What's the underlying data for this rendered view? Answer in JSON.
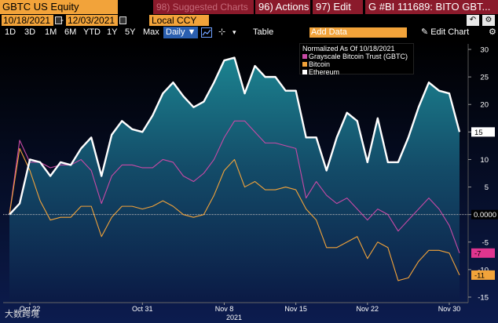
{
  "toolbar": {
    "ticker": "GBTC US Equity",
    "suggested": "98) Suggested Charts",
    "actions": "96) Actions",
    "edit": "97) Edit",
    "chart_title": "G #BI 111689: BITO GBT..."
  },
  "dates": {
    "start": "10/18/2021",
    "end": "12/03/2021",
    "currency": "Local CCY"
  },
  "periods": [
    "1D",
    "3D",
    "1M",
    "6M",
    "YTD",
    "1Y",
    "5Y",
    "Max"
  ],
  "frequency": "Daily ▼",
  "table_label": "Table",
  "add_data_placeholder": "Add Data",
  "edit_chart_label": "Edit Chart",
  "legend": {
    "title": "Normalized As Of 10/18/2021",
    "items": [
      {
        "label": "Grayscale Bitcoin Trust (GBTC)",
        "color": "#c94aa6"
      },
      {
        "label": "Bitcoin",
        "color": "#f2a33a"
      },
      {
        "label": "Ethereum",
        "color": "#ffffff"
      }
    ]
  },
  "watermark": "大数跨境",
  "chart_data": {
    "type": "line",
    "x_ticks": [
      "Oct 22",
      "Oct 31",
      "Nov 8",
      "Nov 15",
      "Nov 22",
      "Nov 30"
    ],
    "x_sublabel": "2021",
    "y_ticks": [
      30,
      25,
      20,
      15,
      10,
      5,
      0,
      -5,
      -10,
      -15
    ],
    "ylim": [
      -16,
      31
    ],
    "last_value_labels": [
      {
        "value": "15",
        "series": "Ethereum",
        "color": "#ffffff"
      },
      {
        "value": "0.0000",
        "series": "baseline",
        "color": "#ffffff"
      },
      {
        "value": "-7",
        "series": "Grayscale Bitcoin Trust (GBTC)",
        "color": "#e0358f"
      },
      {
        "value": "-11",
        "series": "Bitcoin",
        "color": "#f2a33a"
      }
    ],
    "series": [
      {
        "name": "Ethereum",
        "color": "#ffffff",
        "values": [
          0,
          2,
          10,
          9.5,
          7,
          9.5,
          9,
          12,
          14,
          7,
          14.5,
          17,
          15.5,
          15,
          18,
          22,
          24,
          21.5,
          19.5,
          20.5,
          24,
          28,
          28.5,
          22,
          27,
          25,
          25,
          22.5,
          22.5,
          14,
          14,
          8,
          14,
          18.5,
          17,
          9.5,
          17.5,
          9.5,
          9.5,
          14,
          19.5,
          24,
          22.5,
          22,
          15
        ]
      },
      {
        "name": "Grayscale Bitcoin Trust (GBTC)",
        "color": "#c94aa6",
        "values": [
          0,
          13.5,
          9.5,
          9.5,
          8.5,
          9,
          9,
          10,
          8,
          2,
          7,
          9,
          9,
          8.5,
          8.5,
          10,
          9.5,
          7,
          6,
          7.5,
          10,
          14,
          17,
          17,
          15,
          13,
          13,
          12.5,
          12,
          3,
          6,
          3.5,
          2,
          3,
          1,
          -1,
          1,
          0,
          -3,
          -1,
          1,
          3,
          1,
          -2,
          -7
        ]
      },
      {
        "name": "Bitcoin",
        "color": "#f2a33a",
        "values": [
          0,
          12,
          8,
          2.5,
          -1,
          -0.5,
          -0.5,
          1.5,
          1.5,
          -4,
          -0.5,
          1.5,
          1.5,
          1,
          1.5,
          2.5,
          1.5,
          0,
          -0.5,
          0,
          3.5,
          8,
          10,
          5,
          6,
          4.5,
          4.5,
          5,
          4.5,
          1,
          -1,
          -6,
          -6,
          -5,
          -4,
          -8,
          -5,
          -6,
          -12,
          -11.5,
          -8.5,
          -6.5,
          -6.5,
          -7,
          -11
        ]
      }
    ]
  }
}
